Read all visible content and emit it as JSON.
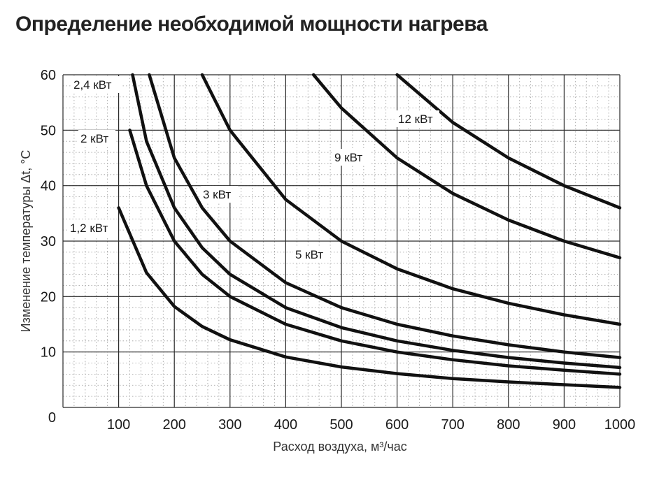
{
  "chart_data": {
    "type": "line",
    "title": "Определение необходимой мощности нагрева",
    "xlabel": "Расход воздуха, м³/час",
    "ylabel": "Изменение температуры Δt, °C",
    "xlim": [
      0,
      1000
    ],
    "ylim": [
      0,
      60
    ],
    "x_ticks": [
      "100",
      "200",
      "300",
      "400",
      "500",
      "600",
      "700",
      "800",
      "900",
      "1000"
    ],
    "y_ticks": [
      "0",
      "10",
      "20",
      "30",
      "40",
      "50",
      "60"
    ],
    "grid": true,
    "series": [
      {
        "name": "1,2 кВт",
        "x": [
          100,
          150,
          200,
          250,
          300,
          400,
          500,
          600,
          700,
          800,
          900,
          1000
        ],
        "y": [
          36,
          24.3,
          18.2,
          14.6,
          12.2,
          9.1,
          7.3,
          6.1,
          5.2,
          4.6,
          4.1,
          3.6
        ]
      },
      {
        "name": "2 кВт",
        "x": [
          120,
          150,
          200,
          250,
          300,
          400,
          500,
          600,
          700,
          800,
          900,
          1000
        ],
        "y": [
          50,
          40,
          30,
          24,
          20,
          15,
          12,
          10,
          8.6,
          7.5,
          6.7,
          6
        ]
      },
      {
        "name": "2,4 кВт",
        "x": [
          125,
          150,
          200,
          250,
          300,
          400,
          500,
          600,
          700,
          800,
          900,
          1000
        ],
        "y": [
          60,
          48,
          36,
          28.8,
          24,
          18,
          14.4,
          12,
          10.3,
          9,
          8,
          7.2
        ]
      },
      {
        "name": "3 кВт",
        "x": [
          155,
          200,
          250,
          300,
          400,
          500,
          600,
          700,
          800,
          900,
          1000
        ],
        "y": [
          60,
          45,
          36,
          30,
          22.5,
          18,
          15,
          12.9,
          11.3,
          10,
          9
        ]
      },
      {
        "name": "5 кВт",
        "x": [
          250,
          300,
          400,
          500,
          600,
          700,
          800,
          900,
          1000
        ],
        "y": [
          60,
          50,
          37.5,
          30,
          25,
          21.4,
          18.8,
          16.7,
          15
        ]
      },
      {
        "name": "9 кВт",
        "x": [
          450,
          500,
          600,
          700,
          800,
          900,
          1000
        ],
        "y": [
          60,
          54,
          45,
          38.6,
          33.8,
          30,
          27
        ]
      },
      {
        "name": "12 кВт",
        "x": [
          600,
          700,
          800,
          900,
          1000
        ],
        "y": [
          60,
          51.4,
          45,
          40,
          36
        ]
      }
    ]
  }
}
